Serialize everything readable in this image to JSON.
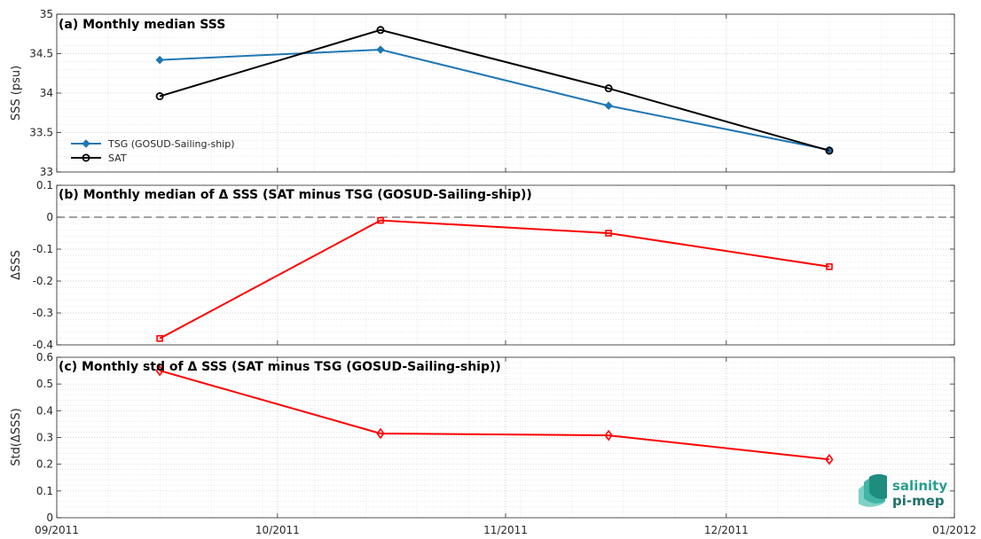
{
  "chart_data": [
    {
      "type": "line",
      "title": "(a) Monthly median SSS",
      "xlabel": "",
      "ylabel": "SSS (psu)",
      "ylim": [
        33,
        35
      ],
      "yticks": [
        "33",
        "33.5",
        "34",
        "34.5",
        "35"
      ],
      "x": [
        "2011-09-15",
        "2011-10-15",
        "2011-11-15",
        "2011-12-15"
      ],
      "series": [
        {
          "name": "TSG (GOSUD-Sailing-ship)",
          "color": "#1f77b4",
          "marker": "diamond",
          "values": [
            34.42,
            34.55,
            33.84,
            33.28
          ]
        },
        {
          "name": "SAT",
          "color": "#000000",
          "marker": "circle",
          "values": [
            33.96,
            34.8,
            34.06,
            33.27
          ]
        }
      ],
      "grid": true,
      "legend": "bottom-left"
    },
    {
      "type": "line",
      "title": "(b) Monthly median of Δ SSS (SAT minus TSG (GOSUD-Sailing-ship))",
      "xlabel": "",
      "ylabel": "ΔSSS",
      "ylim": [
        -0.4,
        0.1
      ],
      "yticks": [
        "-0.4",
        "-0.3",
        "-0.2",
        "-0.1",
        "0",
        "0.1"
      ],
      "x": [
        "2011-09-15",
        "2011-10-15",
        "2011-11-15",
        "2011-12-15"
      ],
      "series": [
        {
          "color": "#ff0000",
          "marker": "square",
          "values": [
            -0.38,
            -0.01,
            -0.05,
            -0.155
          ]
        }
      ],
      "reference_line": 0,
      "grid": true
    },
    {
      "type": "line",
      "title": "(c) Monthly std of Δ SSS (SAT minus TSG (GOSUD-Sailing-ship))",
      "xlabel": "",
      "ylabel": "Std(ΔSSS)",
      "ylim": [
        0,
        0.6
      ],
      "yticks": [
        "0",
        "0.1",
        "0.2",
        "0.3",
        "0.4",
        "0.5",
        "0.6"
      ],
      "x": [
        "2011-09-15",
        "2011-10-15",
        "2011-11-15",
        "2011-12-15"
      ],
      "series": [
        {
          "color": "#ff0000",
          "marker": "diamond",
          "values": [
            0.55,
            0.315,
            0.308,
            0.218
          ]
        }
      ],
      "grid": true
    }
  ],
  "x_axis": {
    "ticks": [
      "09/2011",
      "10/2011",
      "11/2011",
      "12/2011",
      "01/2012"
    ],
    "range": [
      "2011-09-01",
      "2012-01-01"
    ]
  },
  "logo": {
    "line1": "salinity",
    "line2": "pi-mep"
  }
}
